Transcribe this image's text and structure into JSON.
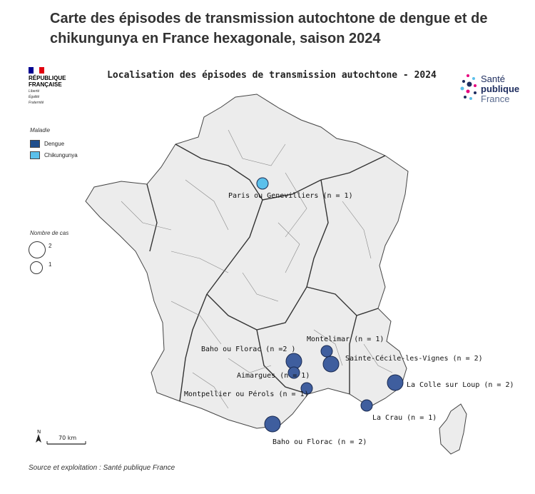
{
  "headline": "Carte des épisodes de transmission autochtone de dengue et de chikungunya en France hexagonale, saison 2024",
  "map_title": "Localisation des épisodes de transmission autochtone - 2024",
  "republique_logo": {
    "name_line1": "RÉPUBLIQUE",
    "name_line2": "FRANÇAISE",
    "motto": [
      "Liberté",
      "Égalité",
      "Fraternité"
    ]
  },
  "spf_logo": {
    "line1": "Santé",
    "line2": "publique",
    "line3": "France"
  },
  "legend": {
    "disease_title": "Maladie",
    "items": [
      {
        "label": "Dengue",
        "color": "#1f4e8c"
      },
      {
        "label": "Chikungunya",
        "color": "#5bc0eb"
      }
    ],
    "size_title": "Nombre de cas",
    "sizes": [
      {
        "label": "2"
      },
      {
        "label": "1"
      }
    ]
  },
  "scale_label": "70 km",
  "north_label": "N",
  "source": "Source et exploitation : Santé publique France",
  "colors": {
    "dengue": "#3f5e9e",
    "chikungunya": "#5bc0eb",
    "land": "#ececec",
    "border": "#444444"
  },
  "episodes": [
    {
      "label": "Paris ou Genevilliers (n = 1)",
      "disease": "chikungunya",
      "cases": 1
    },
    {
      "label": "Montelimar (n = 1)",
      "disease": "dengue",
      "cases": 1
    },
    {
      "label": "Baho ou Florac (n =2 )",
      "disease": "dengue",
      "cases": 2
    },
    {
      "label": "Sainte-Cécile-les-Vignes (n = 2)",
      "disease": "dengue",
      "cases": 2
    },
    {
      "label": "Aimargues (n = 1)",
      "disease": "dengue",
      "cases": 1
    },
    {
      "label": "La Colle sur Loup (n = 2)",
      "disease": "dengue",
      "cases": 2
    },
    {
      "label": "Montpellier ou Pérols (n = 1)",
      "disease": "dengue",
      "cases": 1
    },
    {
      "label": "La Crau (n = 1)",
      "disease": "dengue",
      "cases": 1
    },
    {
      "label": "Baho ou Florac (n = 2)",
      "disease": "dengue",
      "cases": 2
    }
  ]
}
